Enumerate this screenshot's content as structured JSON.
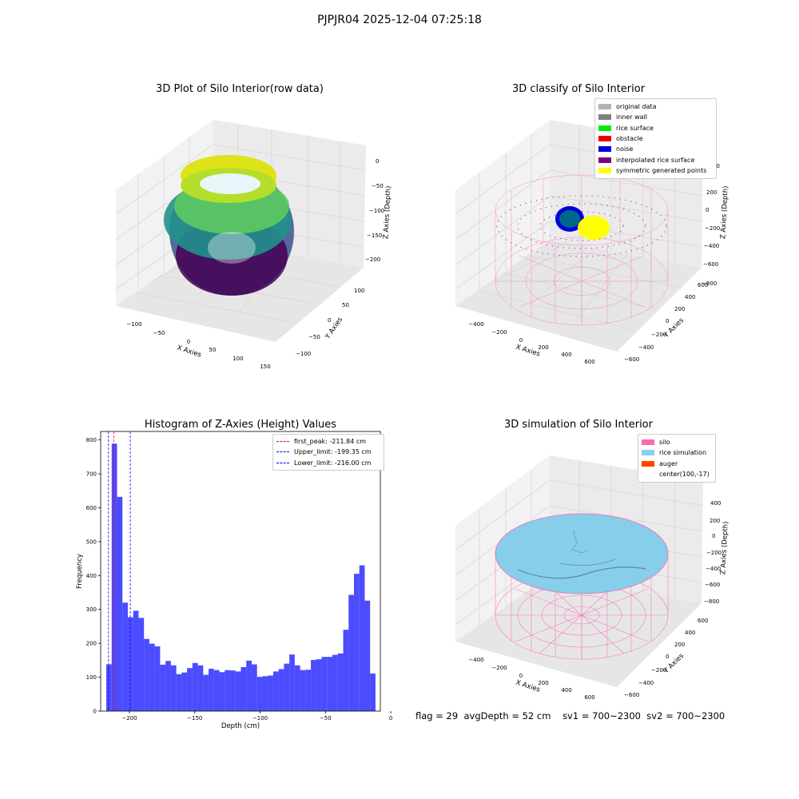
{
  "figure": {
    "suptitle": "PJPJR04 2025-12-04 07:25:18",
    "footer": {
      "flag": "flag = 29",
      "avg_depth": "avgDepth = 52 cm",
      "sv1": "sv1 = 700~2300",
      "sv2": "sv2 = 700~2300"
    }
  },
  "panels": {
    "raw": {
      "title": "3D Plot of Silo Interior(row data)",
      "xlabel": "X Axies",
      "ylabel": "Y Axies",
      "zlabel": "Z Axies (Depth)",
      "xticks": [
        "−100",
        "−50",
        "0",
        "50",
        "100",
        "150"
      ],
      "yticks": [
        "−100",
        "−50",
        "0",
        "50",
        "100"
      ],
      "zticks": [
        "0",
        "−50",
        "−100",
        "−150",
        "−200"
      ]
    },
    "classify": {
      "title": "3D classify of Silo Interior",
      "xlabel": "X Axies",
      "ylabel": "Y Axies",
      "zlabel": "Z Axies (Depth)",
      "xticks": [
        "−400",
        "−200",
        "0",
        "200",
        "400",
        "600"
      ],
      "yticks": [
        "−600",
        "−400",
        "−200",
        "0",
        "200",
        "400",
        "600"
      ],
      "zticks": [
        "200",
        "0",
        "−200",
        "−400",
        "−600",
        "−800"
      ],
      "zticks_partial": [
        "00"
      ],
      "legend": [
        {
          "label": "original data",
          "color": "#b3b3b3"
        },
        {
          "label": "inner wall",
          "color": "#808080"
        },
        {
          "label": "rice surface",
          "color": "#00ee00"
        },
        {
          "label": "obstacle",
          "color": "#ee0000"
        },
        {
          "label": "noise",
          "color": "#0000dd"
        },
        {
          "label": "interpolated rice surface",
          "color": "#800080"
        },
        {
          "label": "symmetric generated points",
          "color": "#ffff00"
        }
      ]
    },
    "simulation": {
      "title": "3D simulation of Silo Interior",
      "xlabel": "X Axies",
      "ylabel": "Y Axies",
      "zlabel": "Z Axies (Depth)",
      "xticks": [
        "−400",
        "−200",
        "0",
        "200",
        "400",
        "600"
      ],
      "yticks": [
        "−600",
        "−400",
        "−200",
        "0",
        "200",
        "400",
        "600"
      ],
      "zticks": [
        "400",
        "200",
        "0",
        "−200",
        "−400",
        "−600",
        "−800"
      ],
      "legend": [
        {
          "label": "silo",
          "color": "#ff69b4"
        },
        {
          "label": "rice simulation",
          "color": "#87ceeb"
        },
        {
          "label": "auger",
          "color": "#ff4500"
        },
        {
          "label": "center(100,-17)",
          "color": ""
        }
      ]
    }
  },
  "chart_data": {
    "type": "bar",
    "title": "Histogram of Z-Axies (Height) Values",
    "xlabel": "Depth (cm)",
    "ylabel": "Frequency",
    "xlim": [
      -222,
      -8
    ],
    "ylim": [
      0,
      825
    ],
    "xticks": [
      -200,
      -150,
      -100,
      -50,
      0
    ],
    "xtick_labels": [
      "−200",
      "−150",
      "−100",
      "−50",
      "0"
    ],
    "yticks": [
      0,
      100,
      200,
      300,
      400,
      500,
      600,
      700,
      800
    ],
    "bar_color": "#0000ff",
    "bin_width": 4.12,
    "bin_starts": [
      -217.7,
      -213.58,
      -209.46,
      -205.34,
      -201.22,
      -197.1,
      -192.98,
      -188.86,
      -184.74,
      -180.62,
      -176.5,
      -172.38,
      -168.26,
      -164.14,
      -160.02,
      -155.9,
      -151.78,
      -147.66,
      -143.54,
      -139.42,
      -135.3,
      -131.18,
      -127.06,
      -122.94,
      -118.82,
      -114.7,
      -110.58,
      -106.46,
      -102.34,
      -98.22,
      -94.1,
      -89.98,
      -85.86,
      -81.74,
      -77.62,
      -73.5,
      -69.38,
      -65.26,
      -61.14,
      -57.02,
      -52.9,
      -48.78,
      -44.66,
      -40.54,
      -36.42,
      -32.3,
      -28.18,
      -24.06,
      -19.94,
      -15.82,
      -11.7
    ],
    "values": [
      138,
      789,
      632,
      320,
      277,
      296,
      275,
      213,
      199,
      191,
      137,
      148,
      135,
      109,
      114,
      127,
      142,
      135,
      107,
      125,
      121,
      115,
      121,
      120,
      117,
      130,
      149,
      138,
      101,
      103,
      105,
      117,
      124,
      140,
      167,
      135,
      121,
      122,
      151,
      153,
      160,
      160,
      166,
      170,
      240,
      343,
      405,
      430,
      326,
      111
    ],
    "lines": [
      {
        "label": "first_peak: -211.84 cm",
        "x": -211.84,
        "color": "#ff0000"
      },
      {
        "label": "Upper_limit: -199.35 cm",
        "x": -199.35,
        "color": "#0000ff"
      },
      {
        "label": "Lower_limit: -216.00 cm",
        "x": -216.0,
        "color": "#0000ff"
      }
    ],
    "legend_position": "top-right"
  }
}
